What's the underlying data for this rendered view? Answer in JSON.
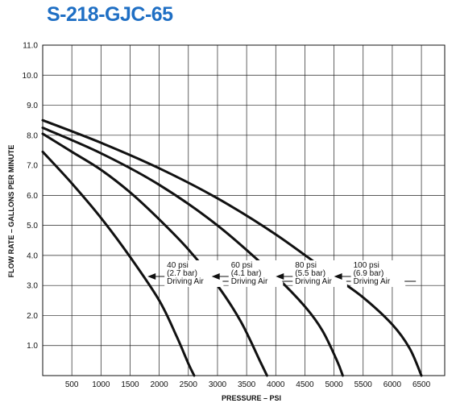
{
  "chart_data": {
    "type": "line",
    "title": "S-218-GJC-65",
    "xlabel": "PRESSURE – PSI",
    "ylabel": "FLOW RATE – GALLONS PER MINUTE",
    "xlim": [
      0,
      6900
    ],
    "ylim": [
      0,
      11
    ],
    "x_ticks": [
      500,
      1000,
      1500,
      2000,
      2500,
      3000,
      3500,
      4000,
      4500,
      5000,
      5500,
      6000,
      6500
    ],
    "y_ticks": [
      "1.0",
      "2.0",
      "3.0",
      "4.0",
      "5.0",
      "6.0",
      "7.0",
      "8.0",
      "9.0",
      "10.0",
      "11.0"
    ],
    "grid": true,
    "series": [
      {
        "name": "40 psi (2.7 bar) Driving Air",
        "label_lines": [
          "40 psi",
          "(2.7 bar)",
          "Driving  Air"
        ],
        "arrow_at": [
          1800,
          3.3
        ],
        "x": [
          0,
          500,
          1000,
          1500,
          2000,
          2300,
          2500,
          2600
        ],
        "y": [
          7.45,
          6.4,
          5.25,
          3.95,
          2.5,
          1.3,
          0.4,
          0
        ]
      },
      {
        "name": "60 psi (4.1 bar) Driving Air",
        "label_lines": [
          "60 psi",
          "(4.1 bar)",
          "Driving Air"
        ],
        "arrow_at": [
          2900,
          3.3
        ],
        "x": [
          0,
          500,
          1000,
          1500,
          2000,
          2500,
          3000,
          3400,
          3750,
          3850
        ],
        "y": [
          8.05,
          7.45,
          6.85,
          6.1,
          5.2,
          4.2,
          3.0,
          1.8,
          0.4,
          0
        ]
      },
      {
        "name": "80 psi (5.5 bar) Driving Air",
        "label_lines": [
          "80 psi",
          "(5.5 bar)",
          "Driving Air"
        ],
        "arrow_at": [
          4000,
          3.3
        ],
        "x": [
          0,
          1000,
          2000,
          3000,
          4000,
          4500,
          4800,
          5050,
          5150
        ],
        "y": [
          8.25,
          7.4,
          6.35,
          5.0,
          3.3,
          2.3,
          1.5,
          0.5,
          0
        ]
      },
      {
        "name": "100 psi (6.9 bar) Driving Air",
        "label_lines": [
          "100 psi",
          "(6.9 bar)",
          "Driving Air"
        ],
        "arrow_at": [
          5000,
          3.3
        ],
        "x": [
          0,
          1000,
          2000,
          3000,
          4000,
          5000,
          5500,
          6000,
          6300,
          6500
        ],
        "y": [
          8.5,
          7.75,
          6.9,
          5.9,
          4.7,
          3.3,
          2.6,
          1.7,
          0.9,
          0
        ]
      }
    ]
  }
}
